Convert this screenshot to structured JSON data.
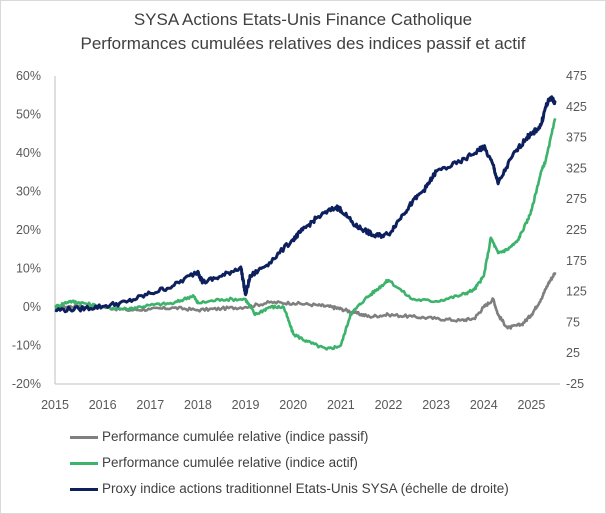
{
  "chart_data": {
    "type": "line",
    "title": "SYSA Actions Etats-Unis Finance Catholique",
    "subtitle": "Performances cumulées relatives des indices passif et actif",
    "xlabel": "",
    "ylabel": "",
    "xlim": [
      2015,
      2025.6
    ],
    "ylim": [
      -0.2,
      0.6
    ],
    "y2lim": [
      -25,
      475
    ],
    "x_ticks": [
      "2015",
      "2016",
      "2017",
      "2018",
      "2019",
      "2020",
      "2021",
      "2022",
      "2023",
      "2024",
      "2025"
    ],
    "y_ticks": [
      "60%",
      "50%",
      "40%",
      "30%",
      "20%",
      "10%",
      "0%",
      "-10%",
      "-20%"
    ],
    "y2_ticks": [
      "475",
      "425",
      "375",
      "325",
      "275",
      "225",
      "175",
      "125",
      "75",
      "25",
      "-25"
    ],
    "grid": false,
    "legend_position": "bottom",
    "series": [
      {
        "name": "Performance cumulée relative (indice passif)",
        "axis": "left",
        "color": "#7f7f7f",
        "x": [
          2015.0,
          2015.5,
          2016.0,
          2016.5,
          2017.0,
          2017.5,
          2018.0,
          2018.5,
          2019.0,
          2019.5,
          2020.0,
          2020.5,
          2020.8,
          2021.0,
          2021.3,
          2021.6,
          2022.0,
          2022.5,
          2023.0,
          2023.5,
          2023.8,
          2024.0,
          2024.2,
          2024.3,
          2024.5,
          2024.8,
          2025.0,
          2025.2,
          2025.35,
          2025.5
        ],
        "y": [
          0.0,
          0.002,
          0.0,
          -0.008,
          -0.006,
          -0.002,
          -0.008,
          -0.004,
          0.0,
          0.012,
          0.01,
          0.005,
          0.0,
          -0.005,
          -0.015,
          -0.025,
          -0.02,
          -0.025,
          -0.03,
          -0.035,
          -0.03,
          0.0,
          0.02,
          -0.02,
          -0.055,
          -0.045,
          -0.02,
          0.02,
          0.06,
          0.09
        ]
      },
      {
        "name": "Performance cumulée relative (indice actif)",
        "axis": "left",
        "color": "#3cb36b",
        "x": [
          2015.0,
          2015.3,
          2015.6,
          2016.0,
          2016.5,
          2017.0,
          2017.5,
          2017.9,
          2018.0,
          2018.5,
          2019.0,
          2019.2,
          2019.5,
          2019.8,
          2020.0,
          2020.3,
          2020.7,
          2021.0,
          2021.2,
          2021.5,
          2021.8,
          2022.0,
          2022.5,
          2023.0,
          2023.5,
          2023.8,
          2024.0,
          2024.15,
          2024.3,
          2024.5,
          2024.7,
          2024.9,
          2025.0,
          2025.2,
          2025.3,
          2025.5
        ],
        "y": [
          0.0,
          0.015,
          0.01,
          0.0,
          -0.005,
          0.005,
          0.01,
          0.03,
          0.01,
          0.02,
          0.02,
          -0.02,
          0.0,
          0.0,
          -0.07,
          -0.09,
          -0.11,
          -0.1,
          -0.02,
          0.02,
          0.05,
          0.07,
          0.02,
          0.015,
          0.03,
          0.045,
          0.08,
          0.18,
          0.14,
          0.15,
          0.17,
          0.22,
          0.25,
          0.35,
          0.38,
          0.49
        ]
      },
      {
        "name": "Proxy indice actions traditionnel Etats-Unis SYSA (échelle de droite)",
        "axis": "right",
        "color": "#0d1f5c",
        "x": [
          2015.0,
          2015.5,
          2016.0,
          2016.5,
          2017.0,
          2017.5,
          2018.0,
          2018.1,
          2018.5,
          2018.9,
          2019.0,
          2019.1,
          2019.5,
          2020.0,
          2020.2,
          2020.5,
          2020.9,
          2021.0,
          2021.3,
          2021.5,
          2021.7,
          2022.0,
          2022.3,
          2022.5,
          2022.8,
          2023.0,
          2023.5,
          2023.9,
          2024.0,
          2024.2,
          2024.3,
          2024.6,
          2024.9,
          2025.0,
          2025.2,
          2025.3,
          2025.4,
          2025.5
        ],
        "y": [
          95,
          97,
          101,
          108,
          122,
          135,
          158,
          140,
          150,
          165,
          120,
          150,
          172,
          210,
          225,
          245,
          262,
          258,
          232,
          225,
          215,
          218,
          250,
          270,
          295,
          320,
          335,
          355,
          360,
          330,
          300,
          345,
          375,
          380,
          395,
          425,
          440,
          432
        ]
      }
    ]
  }
}
